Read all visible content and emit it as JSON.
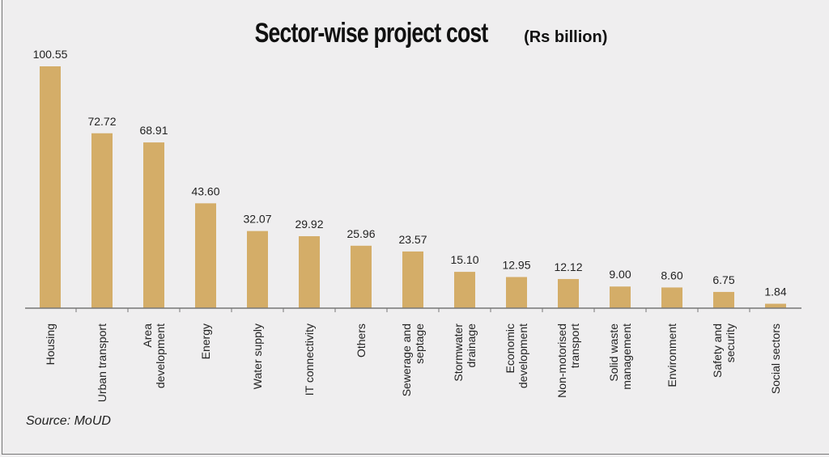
{
  "chart_data": {
    "type": "bar",
    "title": "Sector-wise project cost",
    "title_unit": "(Rs billion)",
    "xlabel": "",
    "ylabel": "",
    "ylim": [
      0,
      100.55
    ],
    "grid": false,
    "categories": [
      [
        "Housing"
      ],
      [
        "Urban transport"
      ],
      [
        "Area",
        "development"
      ],
      [
        "Energy"
      ],
      [
        "Water supply"
      ],
      [
        "IT connectivity"
      ],
      [
        "Others"
      ],
      [
        "Sewerage and",
        "septage"
      ],
      [
        "Stormwater",
        "drainage"
      ],
      [
        "Economic",
        "development"
      ],
      [
        "Non-motorised",
        "transport"
      ],
      [
        "Solid waste",
        "management"
      ],
      [
        "Environment"
      ],
      [
        "Safety and",
        "security"
      ],
      [
        "Social sectors"
      ]
    ],
    "values": [
      100.55,
      72.72,
      68.91,
      43.6,
      32.07,
      29.92,
      25.96,
      23.57,
      15.1,
      12.95,
      12.12,
      9.0,
      8.6,
      6.75,
      1.84
    ],
    "value_labels": [
      "100.55",
      "72.72",
      "68.91",
      "43.60",
      "32.07",
      "29.92",
      "25.96",
      "23.57",
      "15.10",
      "12.95",
      "12.12",
      "9.00",
      "8.60",
      "6.75",
      "1.84"
    ],
    "source": "Source: MoUD",
    "colors": {
      "bar": "#d4ad68",
      "axis": "#777777",
      "text": "#222222"
    }
  }
}
